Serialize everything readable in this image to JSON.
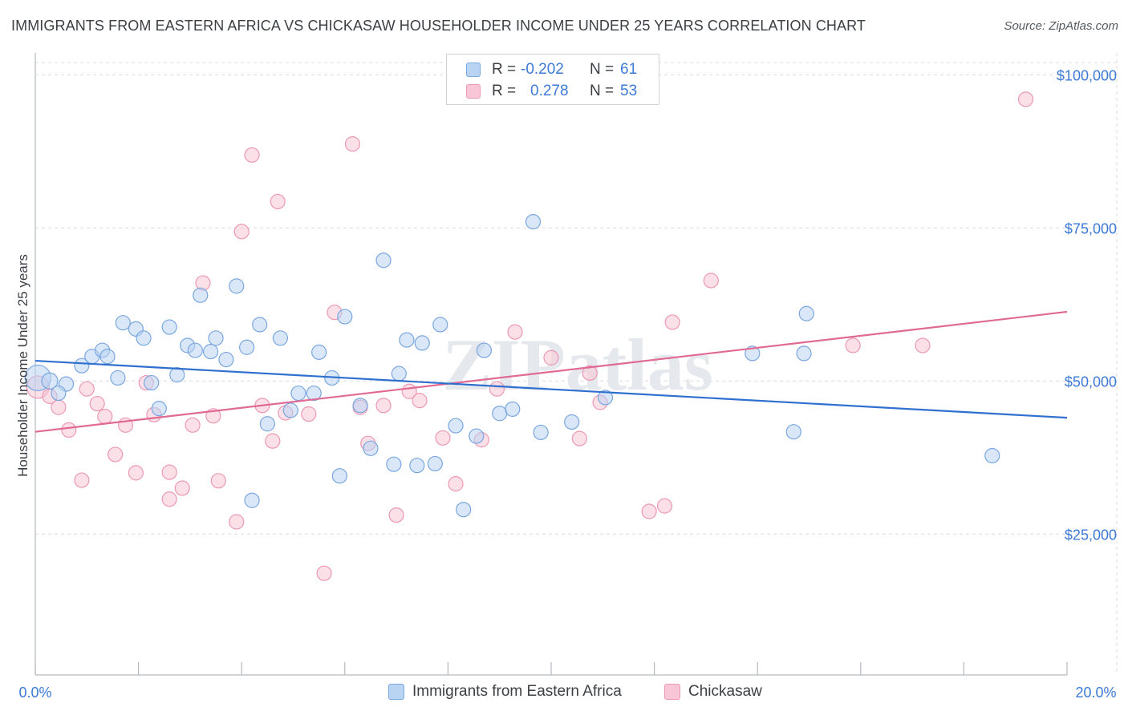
{
  "header": {
    "title": "IMMIGRANTS FROM EASTERN AFRICA VS CHICKASAW HOUSEHOLDER INCOME UNDER 25 YEARS CORRELATION CHART",
    "source": "Source: ZipAtlas.com"
  },
  "legend": {
    "r_label": "R =",
    "n_label": "N =",
    "series1": {
      "r": "-0.202",
      "n": "61"
    },
    "series2": {
      "r": "0.278",
      "n": "53"
    }
  },
  "bottom_legend": {
    "series1": "Immigrants from Eastern Africa",
    "series2": "Chickasaw"
  },
  "watermark": "ZIPatlas",
  "colors": {
    "series1_fill": "#b9d3f3",
    "series1_stroke": "#7aa7e0",
    "series1_line": "#2f6fcf",
    "series2_fill": "#f8c6d6",
    "series2_stroke": "#ec98b4",
    "series2_line": "#e06a93",
    "tick_text": "#3d7ad6",
    "grid": "#dcdcdc"
  },
  "chart_data": {
    "type": "scatter",
    "title": "IMMIGRANTS FROM EASTERN AFRICA VS CHICKASAW HOUSEHOLDER INCOME UNDER 25 YEARS CORRELATION CHART",
    "xlabel": "",
    "ylabel": "Householder Income Under 25 years",
    "xlim": [
      0,
      20
    ],
    "ylim": [
      2000,
      102000
    ],
    "x_tick_labels": [
      "0.0%",
      "20.0%"
    ],
    "y_ticks": [
      25000,
      50000,
      75000,
      100000
    ],
    "y_tick_labels": [
      "$25,000",
      "$50,000",
      "$75,000",
      "$100,000"
    ],
    "grid": true,
    "legend_position": "top-center",
    "series": [
      {
        "name": "Immigrants from Eastern Africa",
        "trend": [
          [
            0,
            53300
          ],
          [
            20,
            44000
          ]
        ],
        "points": [
          [
            0.05,
            50500,
            16
          ],
          [
            0.28,
            50000,
            10
          ],
          [
            0.6,
            49500,
            9
          ],
          [
            0.45,
            48000,
            9
          ],
          [
            0.9,
            52500,
            9
          ],
          [
            1.1,
            54000,
            9
          ],
          [
            1.3,
            55000,
            9
          ],
          [
            1.4,
            54000,
            9
          ],
          [
            1.6,
            50500,
            9
          ],
          [
            1.7,
            59500,
            9
          ],
          [
            1.95,
            58500,
            9
          ],
          [
            2.1,
            57000,
            9
          ],
          [
            2.25,
            49700,
            9
          ],
          [
            2.4,
            45500,
            9
          ],
          [
            2.6,
            58800,
            9
          ],
          [
            2.75,
            51000,
            9
          ],
          [
            2.95,
            55800,
            9
          ],
          [
            3.1,
            55000,
            9
          ],
          [
            3.2,
            64000,
            9
          ],
          [
            3.4,
            54800,
            9
          ],
          [
            3.5,
            57000,
            9
          ],
          [
            3.7,
            53500,
            9
          ],
          [
            3.9,
            65500,
            9
          ],
          [
            4.1,
            55500,
            9
          ],
          [
            4.2,
            30500,
            9
          ],
          [
            4.35,
            59200,
            9
          ],
          [
            4.5,
            43000,
            9
          ],
          [
            4.75,
            57000,
            9
          ],
          [
            4.95,
            45200,
            9
          ],
          [
            5.1,
            48000,
            9
          ],
          [
            5.4,
            48000,
            9
          ],
          [
            5.5,
            54700,
            9
          ],
          [
            5.75,
            50500,
            9
          ],
          [
            5.9,
            34500,
            9
          ],
          [
            6.0,
            60500,
            9
          ],
          [
            6.3,
            46000,
            9
          ],
          [
            6.5,
            39000,
            9
          ],
          [
            6.75,
            69700,
            9
          ],
          [
            6.95,
            36400,
            9
          ],
          [
            7.05,
            51200,
            9
          ],
          [
            7.2,
            56700,
            9
          ],
          [
            7.4,
            36200,
            9
          ],
          [
            7.5,
            56200,
            9
          ],
          [
            7.75,
            36500,
            9
          ],
          [
            7.85,
            59200,
            9
          ],
          [
            8.15,
            42700,
            9
          ],
          [
            8.3,
            29000,
            9
          ],
          [
            8.55,
            41000,
            9
          ],
          [
            8.7,
            55000,
            9
          ],
          [
            9.0,
            44700,
            9
          ],
          [
            9.25,
            45400,
            9
          ],
          [
            9.65,
            76000,
            9
          ],
          [
            9.8,
            41600,
            9
          ],
          [
            10.4,
            43300,
            9
          ],
          [
            11.05,
            47300,
            9
          ],
          [
            13.9,
            54500,
            9
          ],
          [
            14.7,
            41700,
            9
          ],
          [
            14.9,
            54500,
            9
          ],
          [
            14.95,
            61000,
            9
          ],
          [
            18.55,
            37800,
            9
          ]
        ]
      },
      {
        "name": "Chickasaw",
        "trend": [
          [
            0,
            41700
          ],
          [
            20,
            61300
          ]
        ],
        "points": [
          [
            0.05,
            49000,
            14
          ],
          [
            0.28,
            47500,
            9
          ],
          [
            0.45,
            45700,
            9
          ],
          [
            0.65,
            42000,
            9
          ],
          [
            0.9,
            33800,
            9
          ],
          [
            1.0,
            48700,
            9
          ],
          [
            1.2,
            46300,
            9
          ],
          [
            1.35,
            44200,
            9
          ],
          [
            1.55,
            38000,
            9
          ],
          [
            1.75,
            42800,
            9
          ],
          [
            1.95,
            35000,
            9
          ],
          [
            2.15,
            49700,
            9
          ],
          [
            2.3,
            44500,
            9
          ],
          [
            2.6,
            35100,
            9
          ],
          [
            2.6,
            30700,
            9
          ],
          [
            2.85,
            32500,
            9
          ],
          [
            3.05,
            42800,
            9
          ],
          [
            3.25,
            66000,
            9
          ],
          [
            3.45,
            44300,
            9
          ],
          [
            3.55,
            33700,
            9
          ],
          [
            3.9,
            27000,
            9
          ],
          [
            4.0,
            74400,
            9
          ],
          [
            4.2,
            86900,
            9
          ],
          [
            4.4,
            46000,
            9
          ],
          [
            4.6,
            40200,
            9
          ],
          [
            4.7,
            79300,
            9
          ],
          [
            4.85,
            44800,
            9
          ],
          [
            5.3,
            44600,
            9
          ],
          [
            5.6,
            18600,
            9
          ],
          [
            5.8,
            61200,
            9
          ],
          [
            6.15,
            88700,
            9
          ],
          [
            6.3,
            45700,
            9
          ],
          [
            6.45,
            39800,
            9
          ],
          [
            6.75,
            46000,
            9
          ],
          [
            7.0,
            28100,
            9
          ],
          [
            7.25,
            48300,
            9
          ],
          [
            7.45,
            46800,
            9
          ],
          [
            7.9,
            40700,
            9
          ],
          [
            8.15,
            33200,
            9
          ],
          [
            8.65,
            40400,
            9
          ],
          [
            8.95,
            48700,
            9
          ],
          [
            9.3,
            58000,
            9
          ],
          [
            10.0,
            53800,
            9
          ],
          [
            10.55,
            40600,
            9
          ],
          [
            10.75,
            51300,
            9
          ],
          [
            10.95,
            46500,
            9
          ],
          [
            11.9,
            28700,
            9
          ],
          [
            12.2,
            29600,
            9
          ],
          [
            12.35,
            59600,
            9
          ],
          [
            13.1,
            66400,
            9
          ],
          [
            15.85,
            55800,
            9
          ],
          [
            17.2,
            55800,
            9
          ],
          [
            19.2,
            96000,
            9
          ]
        ]
      }
    ]
  }
}
